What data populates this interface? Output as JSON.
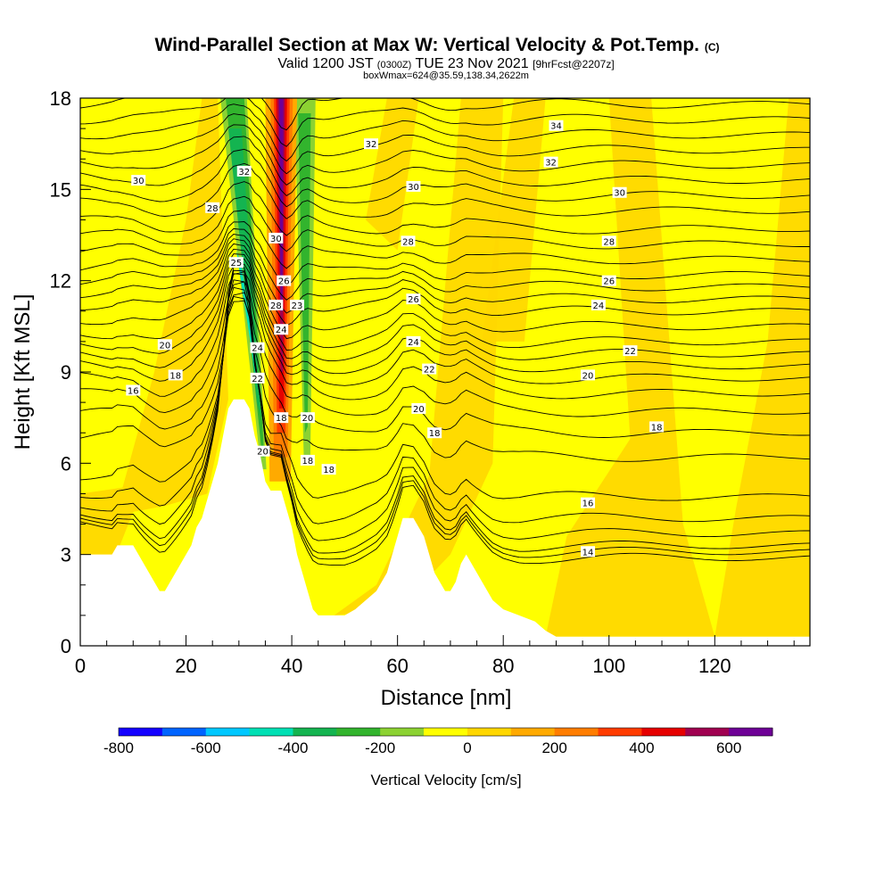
{
  "title": {
    "main": "Wind-Parallel Section at Max W: Vertical Velocity & Pot.Temp.",
    "main_unit": "(C)",
    "valid_prefix": "Valid 1200 JST",
    "valid_utc": "(0300Z)",
    "valid_date": "TUE 23 Nov 2021",
    "fcst": "[9hrFcst@2207z]",
    "boxinfo": "boxWmax=624@35.59,138.34,2622m"
  },
  "chart_data": {
    "type": "heatmap",
    "xlabel": "Distance [nm]",
    "ylabel": "Height [Kft MSL]",
    "xlim": [
      0,
      138
    ],
    "ylim": [
      0,
      18
    ],
    "xticks": [
      0,
      20,
      40,
      60,
      80,
      100,
      120
    ],
    "yticks": [
      0,
      3,
      6,
      9,
      12,
      15,
      18
    ],
    "colorbar": {
      "label": "Vertical Velocity [cm/s]",
      "ticks": [
        -800,
        -600,
        -400,
        -200,
        0,
        200,
        400,
        600
      ],
      "range": [
        -800,
        700
      ],
      "step": 100,
      "colors": [
        "#1400ff",
        "#0064ff",
        "#00c8ff",
        "#00e0b4",
        "#14b450",
        "#32b42d",
        "#8cd232",
        "#ffff00",
        "#ffd700",
        "#ffaa00",
        "#ff7d00",
        "#ff3c00",
        "#e60000",
        "#a00050",
        "#6e0096"
      ]
    },
    "terrain": [
      [
        0,
        3.0
      ],
      [
        6,
        3.0
      ],
      [
        7,
        3.3
      ],
      [
        10,
        3.3
      ],
      [
        11,
        3.0
      ],
      [
        12,
        2.7
      ],
      [
        13,
        2.4
      ],
      [
        14,
        2.1
      ],
      [
        15,
        1.8
      ],
      [
        16,
        1.8
      ],
      [
        17,
        2.1
      ],
      [
        18,
        2.4
      ],
      [
        19,
        2.7
      ],
      [
        20,
        3.0
      ],
      [
        21,
        3.3
      ],
      [
        22,
        3.9
      ],
      [
        23,
        4.2
      ],
      [
        24,
        4.8
      ],
      [
        25,
        5.4
      ],
      [
        26,
        6.0
      ],
      [
        27,
        6.9
      ],
      [
        28,
        7.8
      ],
      [
        29,
        8.1
      ],
      [
        31,
        8.1
      ],
      [
        32,
        7.8
      ],
      [
        33,
        6.9
      ],
      [
        34,
        6.3
      ],
      [
        35,
        5.4
      ],
      [
        36,
        5.1
      ],
      [
        38,
        5.1
      ],
      [
        39,
        4.5
      ],
      [
        40,
        3.9
      ],
      [
        41,
        3.0
      ],
      [
        42,
        2.4
      ],
      [
        43,
        1.8
      ],
      [
        44,
        1.2
      ],
      [
        45,
        1.0
      ],
      [
        50,
        1.0
      ],
      [
        52,
        1.2
      ],
      [
        54,
        1.5
      ],
      [
        56,
        1.8
      ],
      [
        58,
        2.4
      ],
      [
        59,
        3.0
      ],
      [
        60,
        3.6
      ],
      [
        61,
        4.2
      ],
      [
        63,
        4.2
      ],
      [
        64,
        3.9
      ],
      [
        65,
        3.6
      ],
      [
        66,
        3.0
      ],
      [
        67,
        2.4
      ],
      [
        68,
        2.1
      ],
      [
        69,
        1.8
      ],
      [
        70,
        1.8
      ],
      [
        71,
        2.1
      ],
      [
        72,
        2.7
      ],
      [
        73,
        3.0
      ],
      [
        74,
        2.7
      ],
      [
        75,
        2.4
      ],
      [
        76,
        2.1
      ],
      [
        77,
        1.8
      ],
      [
        78,
        1.5
      ],
      [
        80,
        1.2
      ],
      [
        83,
        1.0
      ],
      [
        86,
        0.8
      ],
      [
        88,
        0.5
      ],
      [
        90,
        0.3
      ],
      [
        138,
        0.3
      ]
    ],
    "theta_contours": [
      {
        "label": "14",
        "y": 2.9
      },
      {
        "label": "14",
        "y": 3.1
      },
      {
        "label": "16",
        "y": 3.3
      },
      {
        "label": "16",
        "y": 3.7
      },
      {
        "label": "16",
        "y": 4.2
      },
      {
        "label": "16",
        "y": 4.9
      },
      {
        "label": "18",
        "y": 6.2
      },
      {
        "label": "18",
        "y": 7.0
      },
      {
        "label": "20",
        "y": 7.7
      },
      {
        "label": "20",
        "y": 8.3
      },
      {
        "label": "20",
        "y": 8.8
      },
      {
        "label": "22",
        "y": 9.2
      },
      {
        "label": "22",
        "y": 9.6
      },
      {
        "label": "22",
        "y": 10.0
      },
      {
        "label": "24",
        "y": 10.5
      },
      {
        "label": "24",
        "y": 11.0
      },
      {
        "label": "26",
        "y": 11.4
      },
      {
        "label": "26",
        "y": 11.8
      },
      {
        "label": "26",
        "y": 12.2
      },
      {
        "label": "28",
        "y": 12.7
      },
      {
        "label": "28",
        "y": 13.2
      },
      {
        "label": "28",
        "y": 13.7
      },
      {
        "label": "30",
        "y": 14.3
      },
      {
        "label": "30",
        "y": 14.8
      },
      {
        "label": "30",
        "y": 15.3
      },
      {
        "label": "32",
        "y": 15.8
      },
      {
        "label": "32",
        "y": 16.3
      },
      {
        "label": "32",
        "y": 16.8
      },
      {
        "label": "34",
        "y": 17.3
      },
      {
        "label": "34",
        "y": 17.8
      }
    ],
    "contour_labels": [
      {
        "text": "16",
        "x": 10,
        "y": 8.4
      },
      {
        "text": "18",
        "x": 18,
        "y": 8.9
      },
      {
        "text": "20",
        "x": 16,
        "y": 9.9
      },
      {
        "text": "25",
        "x": 29.5,
        "y": 12.6
      },
      {
        "text": "28",
        "x": 25,
        "y": 14.4
      },
      {
        "text": "30",
        "x": 11,
        "y": 15.3
      },
      {
        "text": "32",
        "x": 31,
        "y": 15.6
      },
      {
        "text": "30",
        "x": 37,
        "y": 13.4
      },
      {
        "text": "26",
        "x": 38.5,
        "y": 12.0
      },
      {
        "text": "28",
        "x": 37,
        "y": 11.2
      },
      {
        "text": "23",
        "x": 41,
        "y": 11.2
      },
      {
        "text": "24",
        "x": 38,
        "y": 10.4
      },
      {
        "text": "24",
        "x": 33.5,
        "y": 9.8
      },
      {
        "text": "22",
        "x": 33.5,
        "y": 8.8
      },
      {
        "text": "18",
        "x": 38,
        "y": 7.5
      },
      {
        "text": "20",
        "x": 34.5,
        "y": 6.4
      },
      {
        "text": "20",
        "x": 43,
        "y": 7.5
      },
      {
        "text": "18",
        "x": 43,
        "y": 6.1
      },
      {
        "text": "18",
        "x": 47,
        "y": 5.8
      },
      {
        "text": "32",
        "x": 55,
        "y": 16.5
      },
      {
        "text": "30",
        "x": 63,
        "y": 15.1
      },
      {
        "text": "28",
        "x": 62,
        "y": 13.3
      },
      {
        "text": "26",
        "x": 63,
        "y": 11.4
      },
      {
        "text": "24",
        "x": 63,
        "y": 10.0
      },
      {
        "text": "22",
        "x": 66,
        "y": 9.1
      },
      {
        "text": "20",
        "x": 64,
        "y": 7.8
      },
      {
        "text": "18",
        "x": 67,
        "y": 7.0
      },
      {
        "text": "34",
        "x": 90,
        "y": 17.1
      },
      {
        "text": "32",
        "x": 89,
        "y": 15.9
      },
      {
        "text": "30",
        "x": 102,
        "y": 14.9
      },
      {
        "text": "28",
        "x": 100,
        "y": 13.3
      },
      {
        "text": "26",
        "x": 100,
        "y": 12.0
      },
      {
        "text": "24",
        "x": 98,
        "y": 11.2
      },
      {
        "text": "22",
        "x": 104,
        "y": 9.7
      },
      {
        "text": "20",
        "x": 96,
        "y": 8.9
      },
      {
        "text": "18",
        "x": 109,
        "y": 7.2
      },
      {
        "text": "16",
        "x": 96,
        "y": 4.7
      },
      {
        "text": "14",
        "x": 96,
        "y": 3.1
      }
    ]
  }
}
